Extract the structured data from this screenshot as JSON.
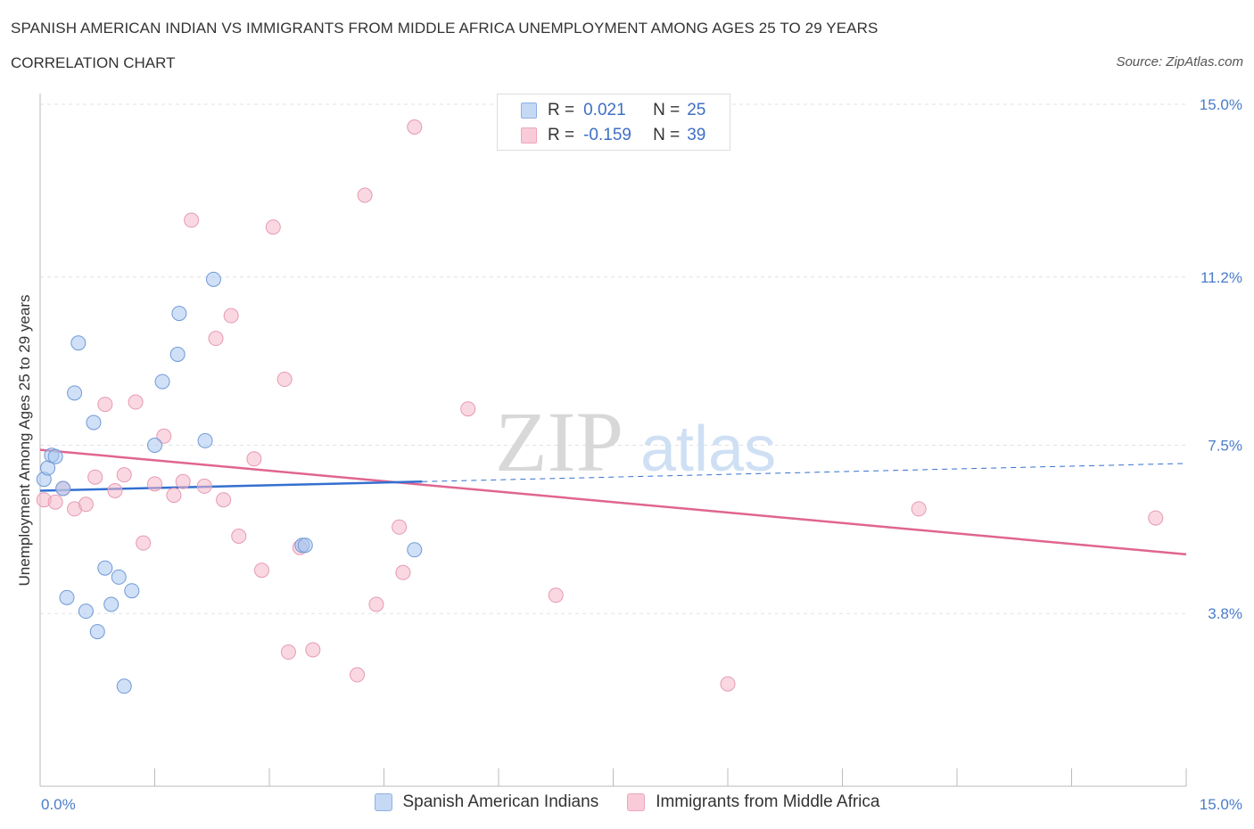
{
  "title": "SPANISH AMERICAN INDIAN VS IMMIGRANTS FROM MIDDLE AFRICA UNEMPLOYMENT AMONG AGES 25 TO 29 YEARS",
  "subtitle": "CORRELATION CHART",
  "source": "Source: ZipAtlas.com",
  "watermark": {
    "zip": "ZIP",
    "atlas": "atlas"
  },
  "legend": {
    "series1": {
      "r_label": "R =",
      "r_value": "0.021",
      "n_label": "N =",
      "n_value": "25"
    },
    "series2": {
      "r_label": "R =",
      "r_value": "-0.159",
      "n_label": "N =",
      "n_value": "39"
    }
  },
  "chart_data": {
    "type": "scatter",
    "title": "SPANISH AMERICAN INDIAN VS IMMIGRANTS FROM MIDDLE AFRICA UNEMPLOYMENT AMONG AGES 25 TO 29 YEARS",
    "xlabel": "",
    "ylabel": "Unemployment Among Ages 25 to 29 years",
    "xlim": [
      0,
      15
    ],
    "ylim": [
      0,
      15
    ],
    "x_tick_labels": [
      "0.0%",
      "15.0%"
    ],
    "y_ticks": [
      3.8,
      7.5,
      11.2,
      15.0
    ],
    "y_tick_labels": [
      "3.8%",
      "7.5%",
      "11.2%",
      "15.0%"
    ],
    "colors": {
      "series1": "#a9c6ef",
      "series1_line": "#3470d0",
      "series2": "#f6b8cb",
      "series2_line": "#e0658f"
    },
    "series": [
      {
        "name": "Spanish American Indians",
        "points": [
          [
            0.05,
            6.75
          ],
          [
            0.1,
            7.0
          ],
          [
            0.15,
            7.28
          ],
          [
            0.2,
            7.25
          ],
          [
            0.3,
            6.55
          ],
          [
            0.35,
            4.15
          ],
          [
            0.45,
            8.65
          ],
          [
            0.5,
            9.75
          ],
          [
            0.6,
            3.85
          ],
          [
            0.7,
            8.0
          ],
          [
            0.75,
            3.4
          ],
          [
            0.85,
            4.8
          ],
          [
            0.93,
            4.0
          ],
          [
            1.03,
            4.6
          ],
          [
            1.1,
            2.2
          ],
          [
            1.2,
            4.3
          ],
          [
            1.5,
            7.5
          ],
          [
            1.6,
            8.9
          ],
          [
            1.8,
            9.5
          ],
          [
            1.82,
            10.4
          ],
          [
            2.16,
            7.6
          ],
          [
            2.27,
            11.15
          ],
          [
            3.43,
            5.3
          ],
          [
            3.47,
            5.3
          ],
          [
            4.9,
            5.2
          ]
        ],
        "trend": {
          "x0": 0,
          "y0": 6.5,
          "x1": 5.0,
          "y1": 6.7,
          "dashed_to_x": 15,
          "dashed_to_y": 7.1
        }
      },
      {
        "name": "Immigrants from Middle Africa",
        "points": [
          [
            0.05,
            6.3
          ],
          [
            0.2,
            6.25
          ],
          [
            0.3,
            6.55
          ],
          [
            0.45,
            6.1
          ],
          [
            0.6,
            6.2
          ],
          [
            0.72,
            6.8
          ],
          [
            0.85,
            8.4
          ],
          [
            0.98,
            6.5
          ],
          [
            1.1,
            6.85
          ],
          [
            1.25,
            8.45
          ],
          [
            1.35,
            5.35
          ],
          [
            1.5,
            6.65
          ],
          [
            1.62,
            7.7
          ],
          [
            1.75,
            6.4
          ],
          [
            1.87,
            6.7
          ],
          [
            1.98,
            12.45
          ],
          [
            2.15,
            6.6
          ],
          [
            2.3,
            9.85
          ],
          [
            2.4,
            6.3
          ],
          [
            2.5,
            10.35
          ],
          [
            2.6,
            5.5
          ],
          [
            2.8,
            7.2
          ],
          [
            2.9,
            4.75
          ],
          [
            3.05,
            12.3
          ],
          [
            3.2,
            8.95
          ],
          [
            3.25,
            2.95
          ],
          [
            3.4,
            5.25
          ],
          [
            3.57,
            3.0
          ],
          [
            4.15,
            2.45
          ],
          [
            4.25,
            13.0
          ],
          [
            4.4,
            4.0
          ],
          [
            4.7,
            5.7
          ],
          [
            4.75,
            4.7
          ],
          [
            4.9,
            14.5
          ],
          [
            5.6,
            8.3
          ],
          [
            6.75,
            4.2
          ],
          [
            9.0,
            2.25
          ],
          [
            11.5,
            6.1
          ],
          [
            14.6,
            5.9
          ]
        ],
        "trend": {
          "x0": 0,
          "y0": 7.4,
          "x1": 15,
          "y1": 5.1
        }
      }
    ]
  }
}
